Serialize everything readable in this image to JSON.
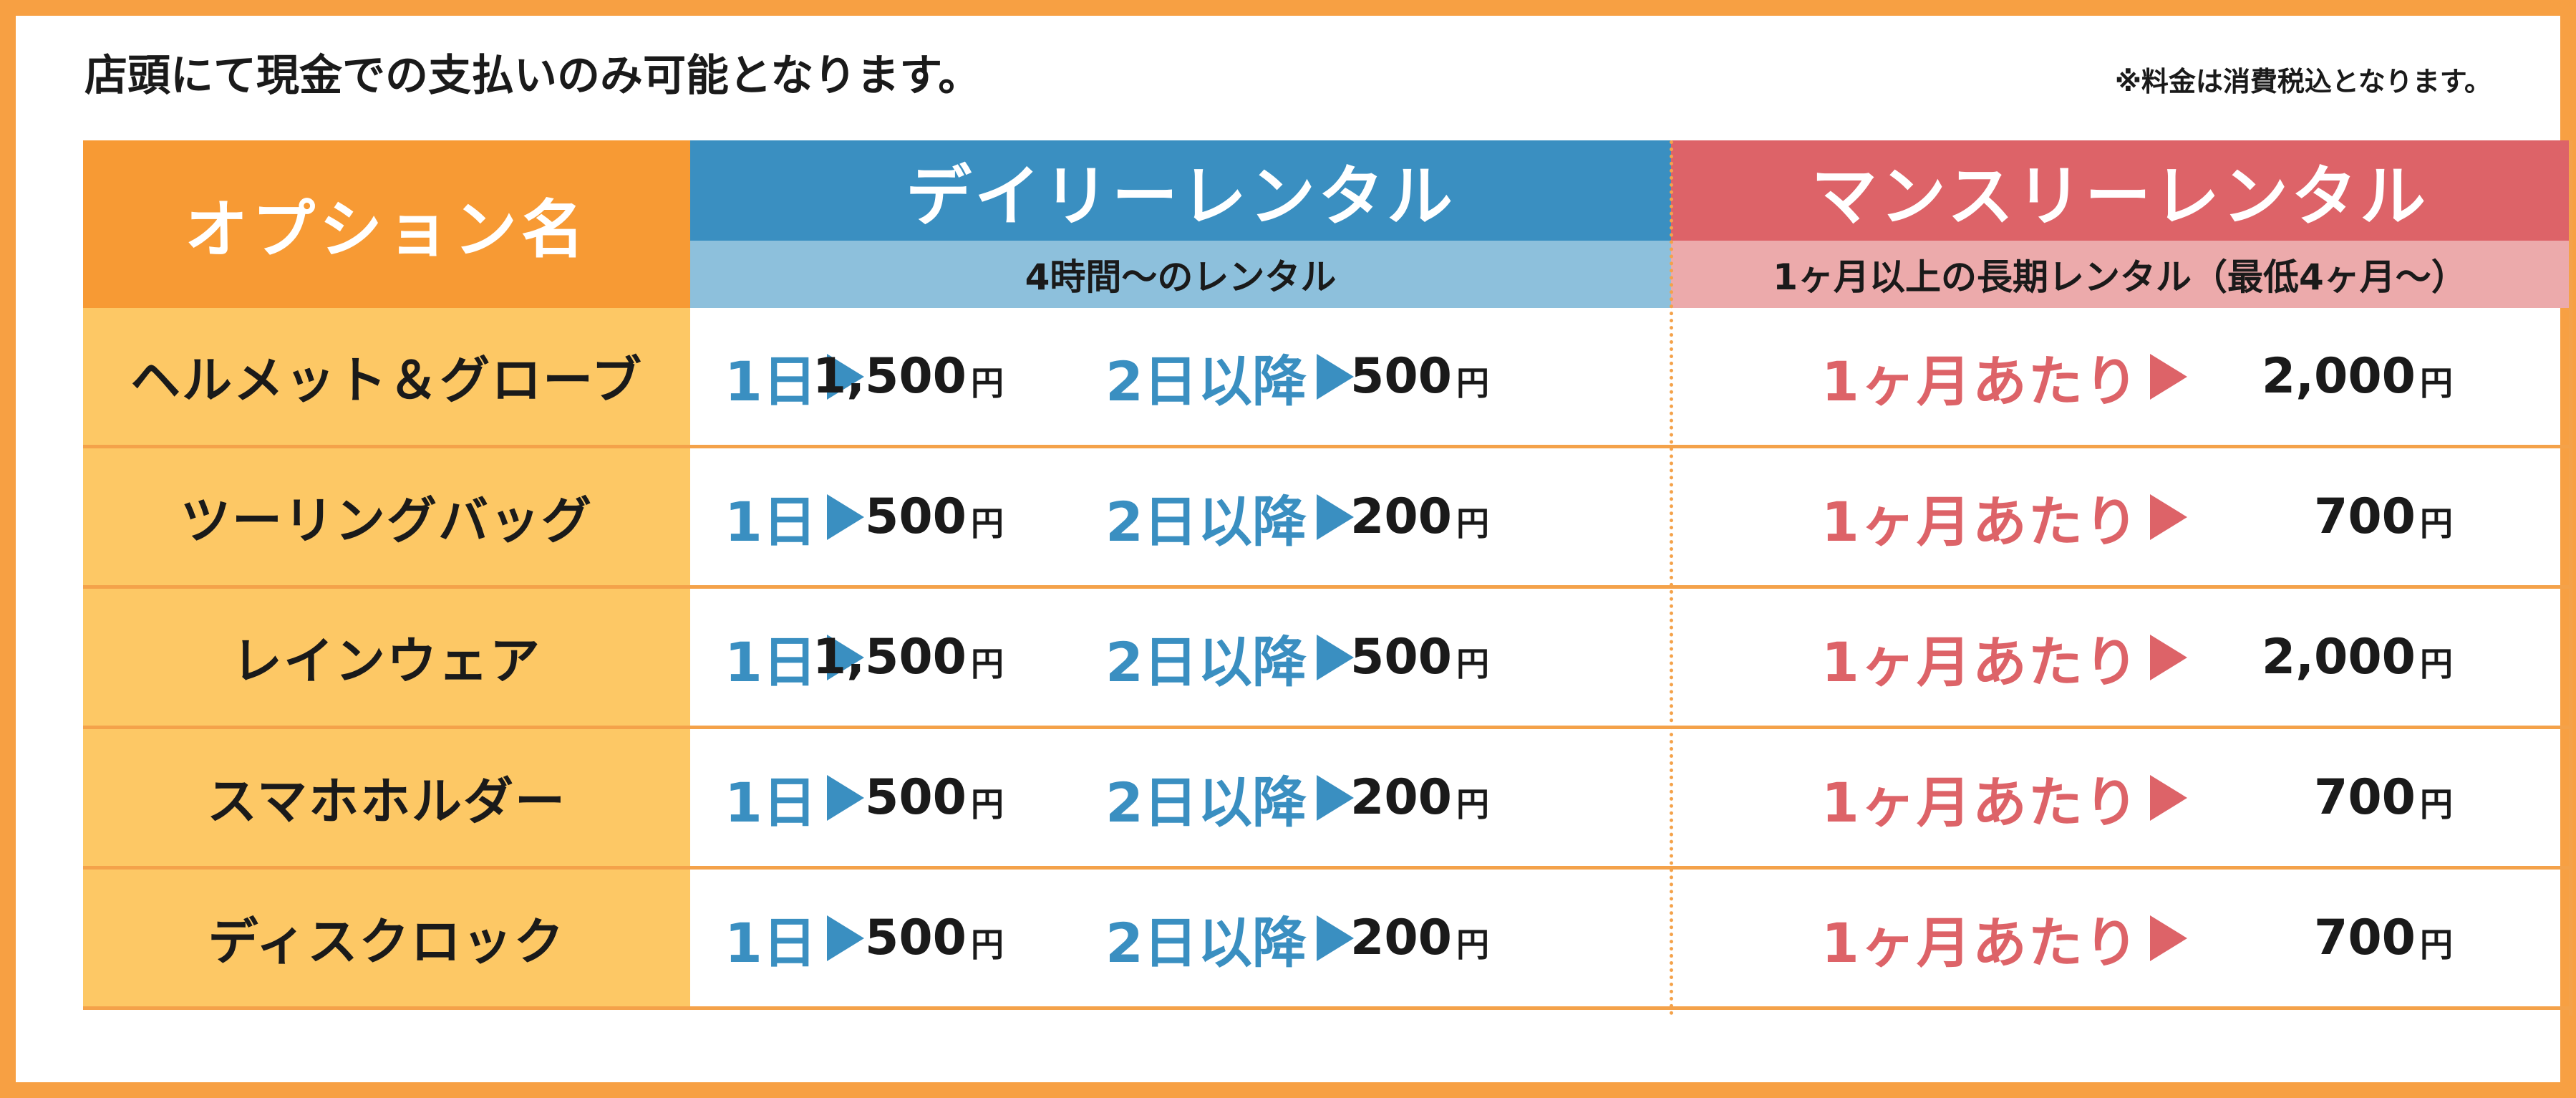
{
  "notice": "店頭にて現金での支払いのみ可能となります。",
  "tax_note": "※料金は消費税込となります。",
  "headers": {
    "option": "オプション名",
    "daily": {
      "title": "デイリーレンタル",
      "subtitle": "4時間〜のレンタル"
    },
    "monthly": {
      "title": "マンスリーレンタル",
      "subtitle": "1ヶ月以上の長期レンタル（最低4ヶ月〜）"
    }
  },
  "labels": {
    "day1": "1日",
    "day2plus": "2日以降",
    "per_month": "1ヶ月あたり",
    "yen": "円"
  },
  "rows": [
    {
      "name": "ヘルメット＆グローブ",
      "day1": "1,500",
      "day2plus": "500",
      "monthly": "2,000"
    },
    {
      "name": "ツーリングバッグ",
      "day1": "500",
      "day2plus": "200",
      "monthly": "700"
    },
    {
      "name": "レインウェア",
      "day1": "1,500",
      "day2plus": "500",
      "monthly": "2,000"
    },
    {
      "name": "スマホホルダー",
      "day1": "500",
      "day2plus": "200",
      "monthly": "700"
    },
    {
      "name": "ディスクロック",
      "day1": "500",
      "day2plus": "200",
      "monthly": "700"
    }
  ],
  "colors": {
    "frame": "#f7a043",
    "option_header": "#f79a34",
    "name_cell": "#fdc865",
    "daily_header": "#3a8fc1",
    "daily_sub": "#8dc0dc",
    "monthly_header": "#dd6368",
    "monthly_sub": "#ecaaab"
  }
}
